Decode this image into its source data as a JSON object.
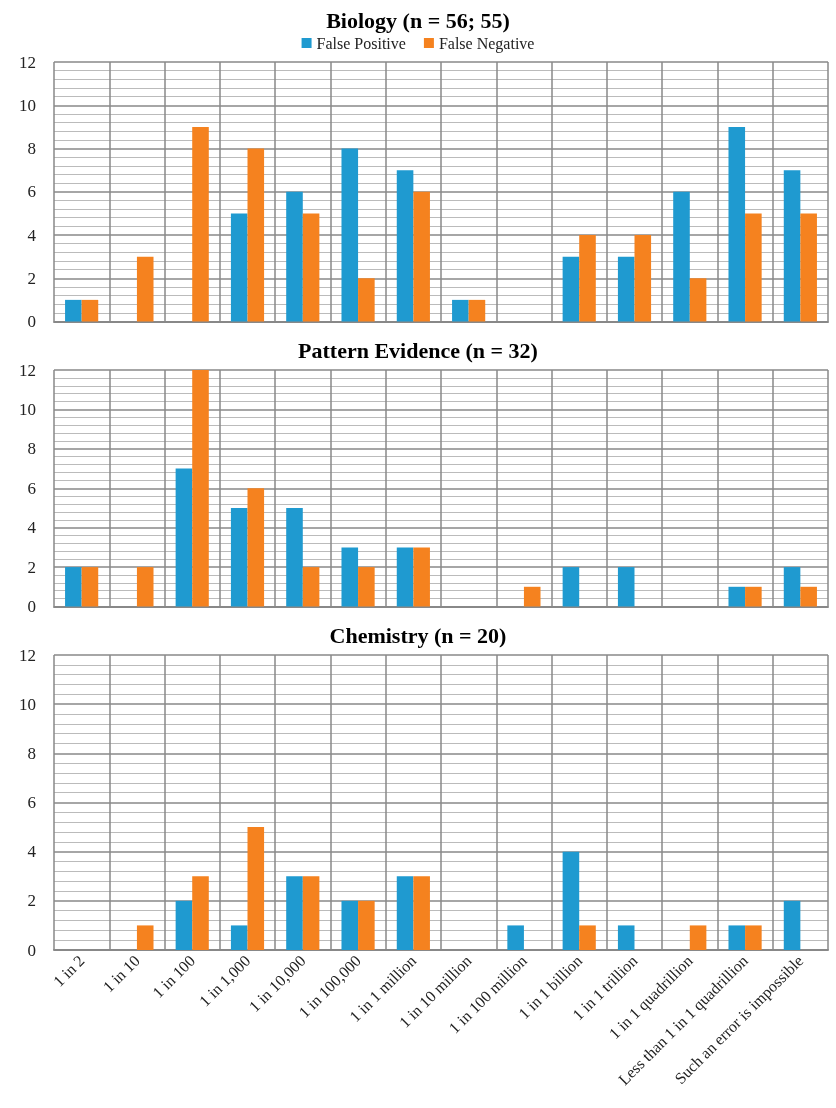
{
  "chart_data": [
    {
      "type": "bar",
      "title": "Biology (n = 56; 55)",
      "categories": [
        null,
        null,
        null,
        null,
        null,
        null,
        null,
        null,
        null,
        null,
        null,
        null,
        null,
        null
      ],
      "series": [
        {
          "name": "False Positive",
          "color": "#1f9ad0",
          "values": [
            1,
            0,
            0,
            5,
            6,
            8,
            7,
            1,
            0,
            3,
            3,
            6,
            9,
            7
          ]
        },
        {
          "name": "False Negative",
          "color": "#f5821f",
          "values": [
            1,
            3,
            9,
            8,
            5,
            2,
            6,
            1,
            0,
            4,
            4,
            2,
            5,
            5
          ]
        }
      ],
      "ylim": [
        0,
        12
      ],
      "yticks": [
        0,
        2,
        4,
        6,
        8,
        10,
        12
      ],
      "grid": true,
      "legend": "top",
      "tick_labels": "y"
    },
    {
      "type": "bar",
      "title": "Pattern Evidence (n = 32)",
      "categories": [
        null,
        null,
        null,
        null,
        null,
        null,
        null,
        null,
        null,
        null,
        null,
        null,
        null,
        null
      ],
      "series": [
        {
          "color": "#1f9ad0",
          "values": [
            2,
            0,
            7,
            5,
            5,
            3,
            3,
            0,
            0,
            2,
            2,
            0,
            1,
            2
          ]
        },
        {
          "color": "#f5821f",
          "values": [
            2,
            2,
            12,
            6,
            2,
            2,
            3,
            0,
            1,
            0,
            0,
            0,
            1,
            1
          ]
        }
      ],
      "ylim": [
        0,
        12
      ],
      "yticks": [
        0,
        2,
        4,
        6,
        8,
        10,
        12
      ],
      "grid": true,
      "tick_labels": "y"
    },
    {
      "type": "bar",
      "title": "Chemistry (n = 20)",
      "categories": [
        "1 in 2",
        "1 in 10",
        "1 in 100",
        "1 in 1,000",
        "1 in 10,000",
        "1 in 100,000",
        "1 in 1 million",
        "1 in 10 million",
        "1 in 100 million",
        "1 in 1 billion",
        "1 in 1 trillion",
        "1 in 1 quadrillion",
        "Less than 1 in 1 quadrillion",
        "Such an error is impossible"
      ],
      "series": [
        {
          "color": "#1f9ad0",
          "values": [
            0,
            0,
            2,
            1,
            3,
            2,
            3,
            0,
            1,
            4,
            1,
            0,
            1,
            2
          ]
        },
        {
          "color": "#f5821f",
          "values": [
            0,
            1,
            3,
            5,
            3,
            2,
            3,
            0,
            0,
            1,
            0,
            1,
            1,
            0
          ]
        }
      ],
      "ylim": [
        0,
        12
      ],
      "yticks": [
        0,
        2,
        4,
        6,
        8,
        10,
        12
      ],
      "grid": true
    }
  ]
}
